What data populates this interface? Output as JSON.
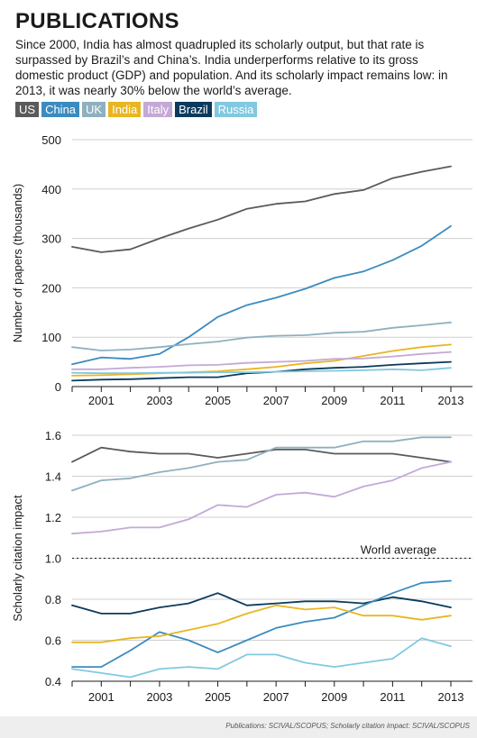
{
  "header": {
    "title": "PUBLICATIONS",
    "subtitle": "Since 2000, India has almost quadrupled its scholarly output, but that rate is surpassed by Brazil’s and China’s. India underperforms relative to its gross domestic product (GDP) and population. And its scholarly impact remains low: in 2013, it was nearly 30% below the world’s average."
  },
  "legend": [
    {
      "name": "US",
      "color": "#5a5a5a"
    },
    {
      "name": "China",
      "color": "#3b8bbf"
    },
    {
      "name": "UK",
      "color": "#8fb0bf"
    },
    {
      "name": "India",
      "color": "#e8b623"
    },
    {
      "name": "Italy",
      "color": "#c4a9d6"
    },
    {
      "name": "Brazil",
      "color": "#0b3a5c"
    },
    {
      "name": "Russia",
      "color": "#82c8e0"
    }
  ],
  "chart_data": [
    {
      "type": "line",
      "ylabel": "Number of papers (thousands)",
      "xlabel": "",
      "ylim": [
        0,
        500
      ],
      "yticks": [
        0,
        100,
        200,
        300,
        400,
        500
      ],
      "x": [
        2000,
        2001,
        2002,
        2003,
        2004,
        2005,
        2006,
        2007,
        2008,
        2009,
        2010,
        2011,
        2012,
        2013
      ],
      "xticks": [
        "2001",
        "2003",
        "2005",
        "2007",
        "2009",
        "2011",
        "2013"
      ],
      "grid": "horizontal",
      "series": [
        {
          "name": "US",
          "color": "#5a5a5a",
          "values": [
            283,
            272,
            278,
            300,
            320,
            338,
            360,
            370,
            375,
            390,
            398,
            422,
            435,
            446
          ]
        },
        {
          "name": "China",
          "color": "#3b8bbf",
          "values": [
            45,
            59,
            56,
            66,
            100,
            141,
            165,
            180,
            198,
            220,
            233,
            256,
            285,
            325
          ]
        },
        {
          "name": "UK",
          "color": "#8fb0bf",
          "values": [
            80,
            73,
            75,
            80,
            86,
            91,
            99,
            103,
            104,
            109,
            111,
            119,
            124,
            130
          ]
        },
        {
          "name": "India",
          "color": "#e8b623",
          "values": [
            22,
            23,
            25,
            27,
            29,
            31,
            35,
            40,
            47,
            52,
            62,
            72,
            80,
            85
          ]
        },
        {
          "name": "Italy",
          "color": "#c4a9d6",
          "values": [
            35,
            35,
            38,
            40,
            43,
            44,
            48,
            50,
            52,
            56,
            57,
            61,
            66,
            70
          ]
        },
        {
          "name": "Brazil",
          "color": "#0b3a5c",
          "values": [
            12,
            14,
            15,
            17,
            19,
            19,
            27,
            30,
            35,
            38,
            40,
            44,
            47,
            50
          ]
        },
        {
          "name": "Russia",
          "color": "#82c8e0",
          "values": [
            28,
            27,
            27,
            28,
            28,
            29,
            29,
            30,
            31,
            32,
            33,
            35,
            33,
            38
          ]
        }
      ]
    },
    {
      "type": "line",
      "ylabel": "Scholarly citation impact",
      "xlabel": "",
      "ylim": [
        0.4,
        1.6
      ],
      "yticks": [
        0.4,
        0.6,
        0.8,
        1.0,
        1.2,
        1.4,
        1.6
      ],
      "x": [
        2000,
        2001,
        2002,
        2003,
        2004,
        2005,
        2006,
        2007,
        2008,
        2009,
        2010,
        2011,
        2012,
        2013
      ],
      "xticks": [
        "2001",
        "2003",
        "2005",
        "2007",
        "2009",
        "2011",
        "2013"
      ],
      "grid": "horizontal",
      "reference_line": {
        "value": 1.0,
        "label": "World average"
      },
      "series": [
        {
          "name": "US",
          "color": "#5a5a5a",
          "values": [
            1.47,
            1.54,
            1.52,
            1.51,
            1.51,
            1.49,
            1.51,
            1.53,
            1.53,
            1.51,
            1.51,
            1.51,
            1.49,
            1.47
          ]
        },
        {
          "name": "UK",
          "color": "#8fb0bf",
          "values": [
            1.33,
            1.38,
            1.39,
            1.42,
            1.44,
            1.47,
            1.48,
            1.54,
            1.54,
            1.54,
            1.57,
            1.57,
            1.59,
            1.59
          ]
        },
        {
          "name": "Italy",
          "color": "#c4a9d6",
          "values": [
            1.12,
            1.13,
            1.15,
            1.15,
            1.19,
            1.26,
            1.25,
            1.31,
            1.32,
            1.3,
            1.35,
            1.38,
            1.44,
            1.47
          ]
        },
        {
          "name": "Brazil",
          "color": "#0b3a5c",
          "values": [
            0.77,
            0.73,
            0.73,
            0.76,
            0.78,
            0.83,
            0.77,
            0.78,
            0.79,
            0.79,
            0.78,
            0.81,
            0.79,
            0.76
          ]
        },
        {
          "name": "China",
          "color": "#3b8bbf",
          "values": [
            0.47,
            0.47,
            0.55,
            0.64,
            0.6,
            0.54,
            0.6,
            0.66,
            0.69,
            0.71,
            0.77,
            0.83,
            0.88,
            0.89
          ]
        },
        {
          "name": "India",
          "color": "#e8b623",
          "values": [
            0.59,
            0.59,
            0.61,
            0.62,
            0.65,
            0.68,
            0.73,
            0.77,
            0.75,
            0.76,
            0.72,
            0.72,
            0.7,
            0.72
          ]
        },
        {
          "name": "Russia",
          "color": "#82c8e0",
          "values": [
            0.46,
            0.44,
            0.42,
            0.46,
            0.47,
            0.46,
            0.53,
            0.53,
            0.49,
            0.47,
            0.49,
            0.51,
            0.61,
            0.57
          ]
        }
      ]
    }
  ],
  "footer": {
    "source": "Publications: SCIVAL/SCOPUS; Scholarly citation impact: SCIVAL/SCOPUS"
  }
}
